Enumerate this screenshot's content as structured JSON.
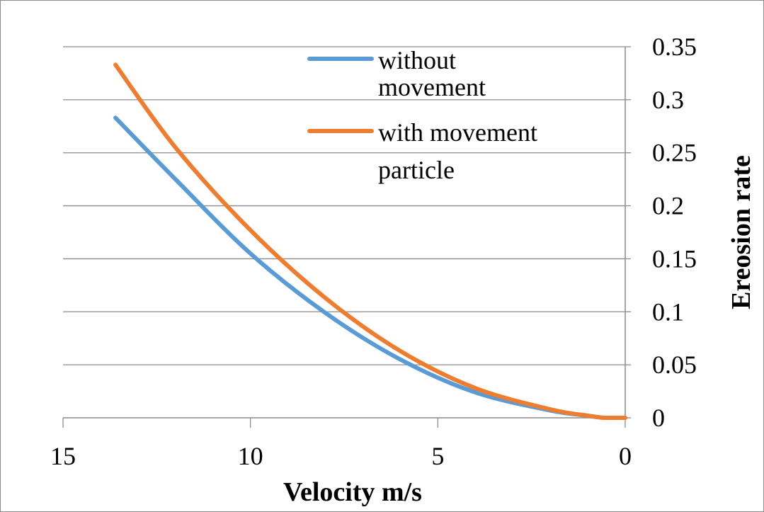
{
  "chart_data": {
    "type": "line",
    "title": "",
    "xlabel": "Velocity m/s",
    "ylabel": "Ereosion rate",
    "xlim": [
      15,
      0
    ],
    "ylim": [
      0,
      0.35
    ],
    "x_reversed": true,
    "y_axis_side": "right",
    "x_ticks": [
      15,
      10,
      5,
      0
    ],
    "y_ticks": [
      0,
      0.05,
      0.1,
      0.15,
      0.2,
      0.25,
      0.3,
      0.35
    ],
    "x_tick_labels": [
      "15",
      "10",
      "5",
      "0"
    ],
    "y_tick_labels": [
      "0",
      "0.05",
      "0.1",
      "0.15",
      "0.2",
      "0.25",
      "0.3",
      "0.35"
    ],
    "grid": "horizontal",
    "legend_position": "top-center",
    "series": [
      {
        "name": "without movement",
        "legend_lines": [
          "without",
          "movement"
        ],
        "color": "#5B9BD5",
        "x": [
          13.6,
          12,
          10,
          8,
          6,
          4,
          2,
          1,
          0.7,
          0.5,
          0
        ],
        "y": [
          0.283,
          0.225,
          0.155,
          0.099,
          0.055,
          0.024,
          0.007,
          0.002,
          0.0005,
          0,
          0
        ]
      },
      {
        "name": "with movement particle",
        "legend_lines": [
          "with movement",
          "particle"
        ],
        "color": "#ED7D31",
        "x": [
          13.6,
          12,
          10,
          8,
          6,
          4,
          2,
          1,
          0.7,
          0.5,
          0
        ],
        "y": [
          0.333,
          0.255,
          0.177,
          0.113,
          0.063,
          0.028,
          0.008,
          0.002,
          0.0005,
          0,
          0
        ]
      }
    ]
  }
}
